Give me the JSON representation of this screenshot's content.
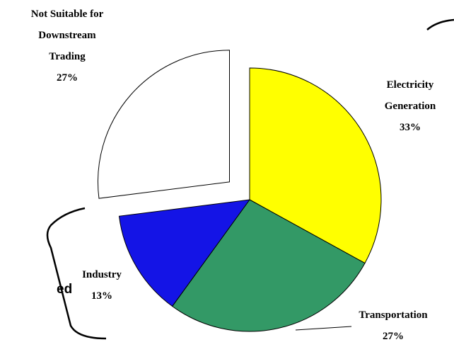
{
  "chart_data": {
    "type": "pie",
    "categories": [
      "Electricity Generation",
      "Transportation",
      "Industry",
      "Not Suitable for Downstream Trading"
    ],
    "values": [
      33,
      27,
      13,
      27
    ],
    "value_labels": [
      "33%",
      "27%",
      "13%",
      "27%"
    ],
    "colors": [
      "#ffff00",
      "#339966",
      "#1414e6",
      "#ffffff"
    ],
    "exploded": [
      false,
      false,
      false,
      true
    ],
    "annotations": [
      "ed"
    ]
  }
}
